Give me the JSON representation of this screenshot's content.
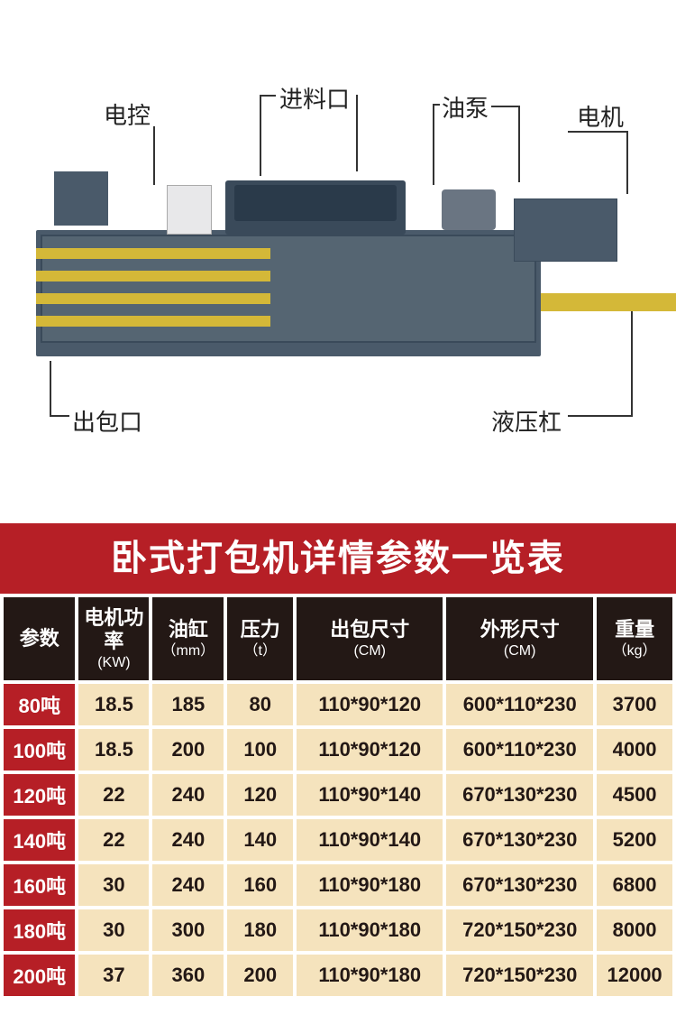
{
  "diagram": {
    "labels": {
      "control": "电控",
      "feed": "进料口",
      "pump": "油泵",
      "motor": "电机",
      "outlet": "出包口",
      "hydraulic": "液压杠"
    },
    "colors": {
      "machine_body": "#4a5a6a",
      "stripe": "#d4b838",
      "leader": "#333",
      "label_text": "#222"
    }
  },
  "title": "卧式打包机详情参数一览表",
  "title_bg": "#b61f26",
  "table": {
    "header_bg": "#231815",
    "cell_bg": "#f5e3bd",
    "rowlabel_bg": "#b61f26",
    "columns": [
      {
        "name": "参数",
        "unit": ""
      },
      {
        "name": "电机功率",
        "unit": "(KW)"
      },
      {
        "name": "油缸",
        "unit": "（mm）"
      },
      {
        "name": "压力",
        "unit": "（t）"
      },
      {
        "name": "出包尺寸",
        "unit": "(CM)"
      },
      {
        "name": "外形尺寸",
        "unit": "(CM)"
      },
      {
        "name": "重量",
        "unit": "（kg）"
      }
    ],
    "rows": [
      {
        "label": "80吨",
        "cells": [
          "18.5",
          "185",
          "80",
          "110*90*120",
          "600*110*230",
          "3700"
        ]
      },
      {
        "label": "100吨",
        "cells": [
          "18.5",
          "200",
          "100",
          "110*90*120",
          "600*110*230",
          "4000"
        ]
      },
      {
        "label": "120吨",
        "cells": [
          "22",
          "240",
          "120",
          "110*90*140",
          "670*130*230",
          "4500"
        ]
      },
      {
        "label": "140吨",
        "cells": [
          "22",
          "240",
          "140",
          "110*90*140",
          "670*130*230",
          "5200"
        ]
      },
      {
        "label": "160吨",
        "cells": [
          "30",
          "240",
          "160",
          "110*90*180",
          "670*130*230",
          "6800"
        ]
      },
      {
        "label": "180吨",
        "cells": [
          "30",
          "300",
          "180",
          "110*90*180",
          "720*150*230",
          "8000"
        ]
      },
      {
        "label": "200吨",
        "cells": [
          "37",
          "360",
          "200",
          "110*90*180",
          "720*150*230",
          "12000"
        ]
      }
    ]
  }
}
